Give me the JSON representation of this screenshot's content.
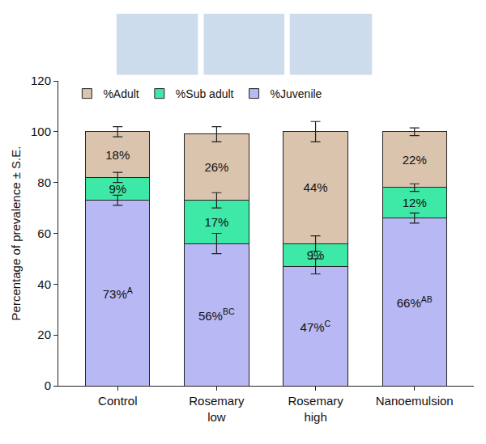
{
  "chart_data": {
    "type": "bar",
    "stacked": true,
    "categories": [
      "Control",
      "Rosemary low",
      "Rosemary high",
      "Nanoemulsion"
    ],
    "y_label": "Percentage of prevalence ± S.E.",
    "ylim": [
      0,
      120
    ],
    "yticks": [
      0,
      20,
      40,
      60,
      80,
      100,
      120
    ],
    "grid": false,
    "legend": "top",
    "data_labels": true,
    "series": [
      {
        "name": "%Juvenile",
        "color": "#b8b8f4",
        "values": [
          73,
          56,
          47,
          66
        ],
        "value_labels": [
          "73%",
          "56%",
          "47%",
          "66%"
        ],
        "significance": [
          "A",
          "BC",
          "C",
          "AB"
        ],
        "errors": [
          2,
          4,
          3,
          2
        ]
      },
      {
        "name": "%Sub adult",
        "color": "#3ee8a6",
        "values": [
          9,
          17,
          9,
          12
        ],
        "value_labels": [
          "9%",
          "17%",
          "9%",
          "12%"
        ],
        "errors": [
          2,
          3,
          3,
          1.5
        ]
      },
      {
        "name": "%Adult",
        "color": "#dac4ae",
        "values": [
          18,
          26,
          44,
          22
        ],
        "value_labels": [
          "18%",
          "26%",
          "44%",
          "22%"
        ],
        "errors": [
          2,
          3,
          4,
          1.5
        ]
      }
    ]
  }
}
